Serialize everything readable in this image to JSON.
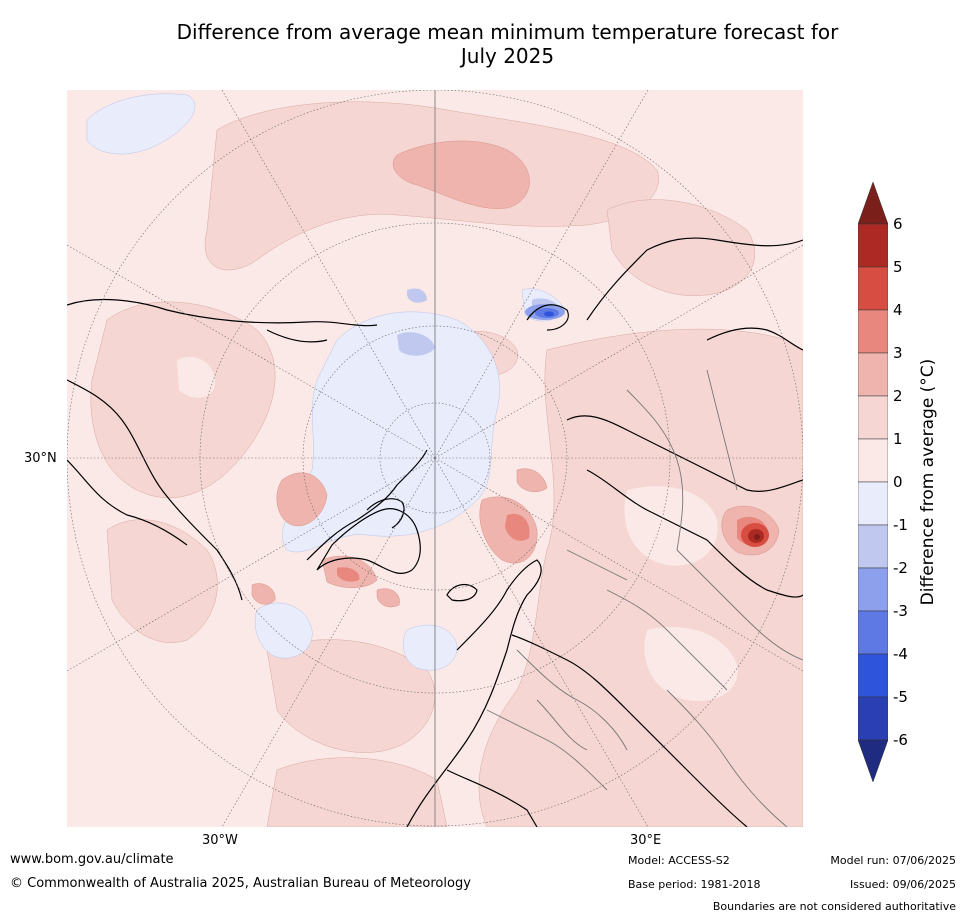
{
  "title_line1": "Difference from average mean minimum temperature forecast for",
  "title_line2": "July 2025",
  "map": {
    "projection": "north-polar-stereographic",
    "lat_label": "30°N",
    "lon_label_west": "30°W",
    "lon_label_east": "30°E"
  },
  "colorbar": {
    "label": "Difference from average ($^\\circ$C)",
    "label_display": "Difference from average (°C)",
    "ticks": [
      "6",
      "5",
      "4",
      "3",
      "2",
      "1",
      "0",
      "-1",
      "-2",
      "-3",
      "-4",
      "-5",
      "-6"
    ],
    "colors": {
      "above_6": "#7b1f1a",
      "5_to_6": "#ad2a24",
      "4_to_5": "#d84d42",
      "3_to_4": "#e8877e",
      "2_to_3": "#eeb4ad",
      "1_to_2": "#f5d6d2",
      "0_to_1": "#fbe9e7",
      "-1_to_0": "#e8ecfb",
      "-2_to_-1": "#c0c8f0",
      "-3_to_-2": "#8ca0ec",
      "-4_to_-3": "#5e78e4",
      "-5_to_-4": "#2f54dc",
      "-6_to_-5": "#2a3fb4",
      "below_-6": "#1f2b80"
    }
  },
  "footer": {
    "website": "www.bom.gov.au/climate",
    "copyright": "© Commonwealth of Australia 2025, Australian Bureau of Meteorology",
    "model": "Model: ACCESS-S2",
    "base_period": "Base period: 1981-2018",
    "model_run": "Model run: 07/06/2025",
    "issued": "Issued: 09/06/2025",
    "boundaries_note": "Boundaries are not considered authoritative"
  }
}
